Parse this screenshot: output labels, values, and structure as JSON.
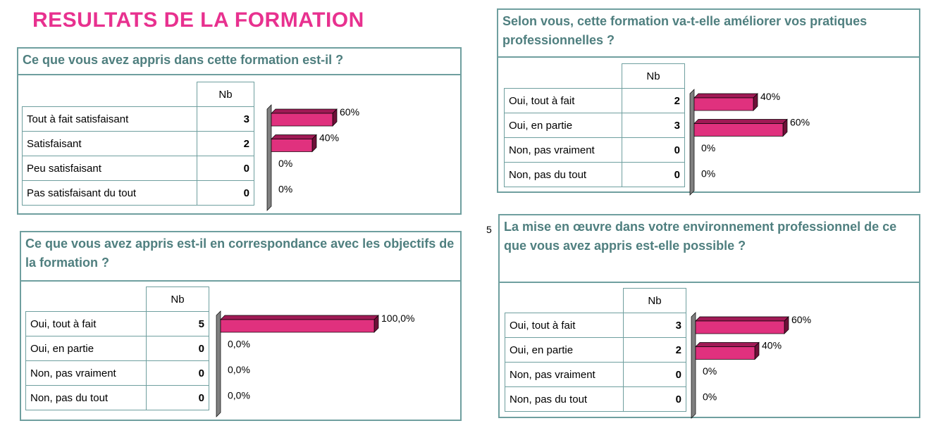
{
  "page_title": "RESULTATS DE LA FORMATION",
  "stray_text": "5",
  "column_header": "Nb",
  "colors": {
    "title": "#e8318f",
    "bar_front": "#e0317e",
    "bar_top": "#a01a55",
    "bar_side": "#6e1038",
    "axis_wall": "#808080",
    "border": "#6f9f9f",
    "question": "#4f7f7f"
  },
  "chart_data": [
    {
      "type": "bar",
      "title": "Ce que vous avez appris dans cette formation est-il ?",
      "categories": [
        "Tout à fait satisfaisant",
        "Satisfaisant",
        "Peu satisfaisant",
        "Pas satisfaisant du tout"
      ],
      "counts": [
        "3",
        "2",
        "0",
        "0"
      ],
      "values": [
        60,
        40,
        0,
        0
      ],
      "data_labels": [
        "60%",
        "40%",
        "0%",
        "0%"
      ],
      "xlim": [
        0,
        100
      ]
    },
    {
      "type": "bar",
      "title": "Ce que vous avez appris est-il en correspondance avec les objectifs de la formation ?",
      "categories": [
        "Oui, tout à fait",
        "Oui, en partie",
        "Non, pas vraiment",
        "Non, pas du tout"
      ],
      "counts": [
        "5",
        "0",
        "0",
        "0"
      ],
      "values": [
        100,
        0,
        0,
        0
      ],
      "data_labels": [
        "100,0%",
        "0,0%",
        "0,0%",
        "0,0%"
      ],
      "xlim": [
        0,
        100
      ]
    },
    {
      "type": "bar",
      "title": "Selon vous, cette formation va-t-elle améliorer vos pratiques professionnelles ?",
      "categories": [
        "Oui, tout à fait",
        "Oui, en partie",
        "Non, pas vraiment",
        "Non, pas du tout"
      ],
      "counts": [
        "2",
        "3",
        "0",
        "0"
      ],
      "values": [
        40,
        60,
        0,
        0
      ],
      "data_labels": [
        "40%",
        "60%",
        "0%",
        "0%"
      ],
      "xlim": [
        0,
        100
      ]
    },
    {
      "type": "bar",
      "title": "La mise en œuvre dans votre environnement professionnel de ce que vous avez appris est-elle possible ?",
      "categories": [
        "Oui, tout à fait",
        "Oui, en partie",
        "Non, pas vraiment",
        "Non, pas du tout"
      ],
      "counts": [
        "3",
        "2",
        "0",
        "0"
      ],
      "values": [
        60,
        40,
        0,
        0
      ],
      "data_labels": [
        "60%",
        "40%",
        "0%",
        "0%"
      ],
      "xlim": [
        0,
        100
      ]
    }
  ]
}
